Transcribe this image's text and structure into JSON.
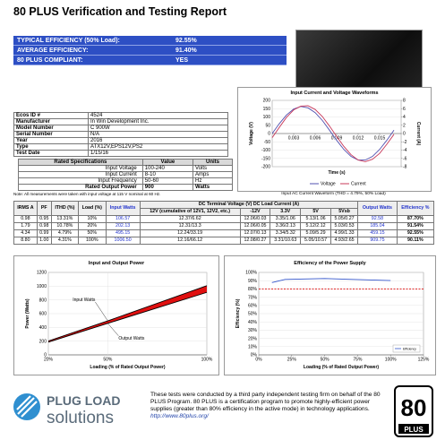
{
  "header": {
    "title": "80 PLUS Verification and Testing Report"
  },
  "summary": {
    "rows": [
      [
        "TYPICAL EFFICIENCY (50% Load):",
        "92.55%"
      ],
      [
        "AVERAGE EFFICIENCY:",
        "91.40%"
      ],
      [
        "80 PLUS COMPLIANT:",
        "YES"
      ]
    ]
  },
  "product_info": {
    "rows": [
      [
        "Ecos ID #",
        "4524"
      ],
      [
        "Manufacturer",
        "In Win Development Inc."
      ],
      [
        "Model Number",
        "C 900W"
      ],
      [
        "Serial Number",
        "N/A"
      ],
      [
        "Year",
        "2016"
      ],
      [
        "Type",
        "ATX12V,EPS12V,PS2"
      ],
      [
        "Test Date",
        "1/15/16"
      ]
    ]
  },
  "rated_specs": {
    "header": [
      "Rated Specifications",
      "Value",
      "Units"
    ],
    "rows": [
      [
        "Input Voltage",
        "100-240",
        "Volts"
      ],
      [
        "Input Current",
        "8-10",
        "Amps"
      ],
      [
        "Input Frequency",
        "50-60",
        "Hz"
      ],
      [
        "Rated Output Power",
        "900",
        "Watts"
      ]
    ],
    "note": "Note: All measurements were taken with input voltage at 115 V nominal at 60 Hz."
  },
  "waveform_caption": "Input AC Current Waveform (THD = 4.79%, 50% Load)",
  "test_results": {
    "lead_headers": [
      "IRMS A",
      "PF",
      "ITHD (%)",
      "Load (%)",
      "Input Watts"
    ],
    "group_header": "DC Terminal Voltage (V) DC Load Current (A)",
    "sub_headers": [
      "12V (cumulative of 12V1, 12V2, etc.)",
      "-12V",
      "3.3V",
      "5V",
      "5Vsb"
    ],
    "tail_headers": [
      "Output Watts",
      "Efficiency %"
    ],
    "rows": [
      [
        "0.98",
        "0.95",
        "13.31%",
        "10%",
        "106.57",
        "12.37/6.62",
        "12.06/0.03",
        "3.35/1.06",
        "5.13/1.06",
        "5.05/0.27",
        "92.58",
        "87.70%"
      ],
      [
        "1.79",
        "0.98",
        "10.78%",
        "20%",
        "202.13",
        "12.31/13.3",
        "12.06/0.05",
        "3.36/2.13",
        "5.12/2.12",
        "5.03/0.53",
        "185.04",
        "91.54%"
      ],
      [
        "4.34",
        "0.99",
        "4.79%",
        "50%",
        "495.15",
        "12.24/33.19",
        "12.07/0.13",
        "3.34/5.32",
        "5.09/5.29",
        "4.99/1.33",
        "459.15",
        "92.55%"
      ],
      [
        "8.80",
        "1.00",
        "4.31%",
        "100%",
        "1006.50",
        "12.16/66.12",
        "12.08/0.27",
        "3.31/10.63",
        "5.05/10.57",
        "4.93/2.65",
        "909.75",
        "90.11%"
      ]
    ]
  },
  "chart_data": [
    {
      "type": "line",
      "title": "Input Current and Voltage Waveforms",
      "x_label": "Time (s)",
      "y_label": "Voltage (V)",
      "y2_label": "Current (A)",
      "x": [
        0,
        0.001,
        0.002,
        0.003,
        0.004,
        0.005,
        0.006,
        0.007,
        0.008,
        0.009,
        0.01,
        0.011,
        0.012,
        0.013,
        0.014,
        0.015,
        0.016,
        0.017
      ],
      "series": [
        {
          "name": "Voltage",
          "color": "#5050b0",
          "values": [
            0,
            60,
            112,
            148,
            163,
            155,
            126,
            79,
            20,
            -41,
            -96,
            -138,
            -160,
            -160,
            -138,
            -96,
            -41,
            20
          ]
        },
        {
          "name": "Current",
          "color": "#c8385a",
          "axis": "y2",
          "values": [
            -1.0,
            1.5,
            3.9,
            5.7,
            6.6,
            6.7,
            5.8,
            4.1,
            1.8,
            -0.7,
            -3.1,
            -5.1,
            -6.4,
            -6.8,
            -6.2,
            -4.8,
            -2.6,
            -0.2
          ]
        }
      ],
      "xlim": [
        0,
        0.018
      ],
      "xticks": [
        0.003,
        0.006,
        0.009,
        0.012,
        0.015
      ],
      "ylim": [
        -200,
        200
      ],
      "yticks": [
        -200,
        -150,
        -100,
        -50,
        0,
        50,
        100,
        150,
        200
      ],
      "y2lim": [
        -8,
        8
      ],
      "y2ticks": [
        -8,
        -6,
        -4,
        -2,
        0,
        2,
        4,
        6,
        8
      ],
      "grid": true,
      "legend": "bottom"
    },
    {
      "type": "line",
      "title": "Input and Output Power",
      "x_label": "Loading (% of Rated Output Power)",
      "y_label": "Power (Watts)",
      "x": [
        20,
        50,
        100
      ],
      "series": [
        {
          "name": "Input Watts",
          "color": "#000000",
          "values": [
            202.13,
            495.15,
            1006.5
          ]
        },
        {
          "name": "Output Watts",
          "color": "#000000",
          "values": [
            185.04,
            459.15,
            909.75
          ]
        }
      ],
      "fill_between": "#e01010",
      "xlim": [
        20,
        100
      ],
      "xticks": [
        {
          "value": 20,
          "label": "20%"
        },
        {
          "value": 50,
          "label": "50%"
        },
        {
          "value": 100,
          "label": "100%"
        }
      ],
      "ylim": [
        0,
        1200
      ],
      "yticks": [
        0,
        200,
        400,
        600,
        800,
        1000,
        1200
      ],
      "grid": true,
      "xgrid": true,
      "legend": "inline"
    },
    {
      "type": "line",
      "title": "Efficiency of the Power Supply",
      "x_label": "Loading (% of Rated Output Power)",
      "y_label": "Efficiency (%)",
      "x": [
        10,
        20,
        50,
        100
      ],
      "series": [
        {
          "name": "Efficiency",
          "color": "#3355cc",
          "values": [
            87.7,
            91.54,
            92.55,
            90.11
          ]
        }
      ],
      "threshold": 80,
      "threshold_color": "#e01010",
      "xlim": [
        0,
        125
      ],
      "xticks": [
        {
          "value": 0,
          "label": "0%"
        },
        {
          "value": 25,
          "label": "25%"
        },
        {
          "value": 50,
          "label": "50%"
        },
        {
          "value": 75,
          "label": "75%"
        },
        {
          "value": 100,
          "label": "100%"
        },
        {
          "value": 125,
          "label": "125%"
        }
      ],
      "ylim": [
        0,
        100
      ],
      "yticks": [
        {
          "value": 0,
          "label": "0%"
        },
        {
          "value": 10,
          "label": "10%"
        },
        {
          "value": 20,
          "label": "20%"
        },
        {
          "value": 30,
          "label": "30%"
        },
        {
          "value": 40,
          "label": "40%"
        },
        {
          "value": 50,
          "label": "50%"
        },
        {
          "value": 60,
          "label": "60%"
        },
        {
          "value": 70,
          "label": "70%"
        },
        {
          "value": 80,
          "label": "80%"
        },
        {
          "value": 90,
          "label": "90%"
        },
        {
          "value": 100,
          "label": "100%"
        }
      ],
      "grid": true,
      "legend": "lower right"
    }
  ],
  "footer": {
    "logo_top": "PLUG LOAD",
    "logo_bottom": "solutions",
    "text": "These tests were conducted by a third party independent testing firm on behalf of the 80 PLUS Program. 80 PLUS is a certification program to promote highly-efficient power supplies (greater than 80% efficiency in the active mode) in technology applications.",
    "url": "http://www.80plus.org/",
    "badge_top": "80",
    "badge_bottom": "PLUS"
  }
}
